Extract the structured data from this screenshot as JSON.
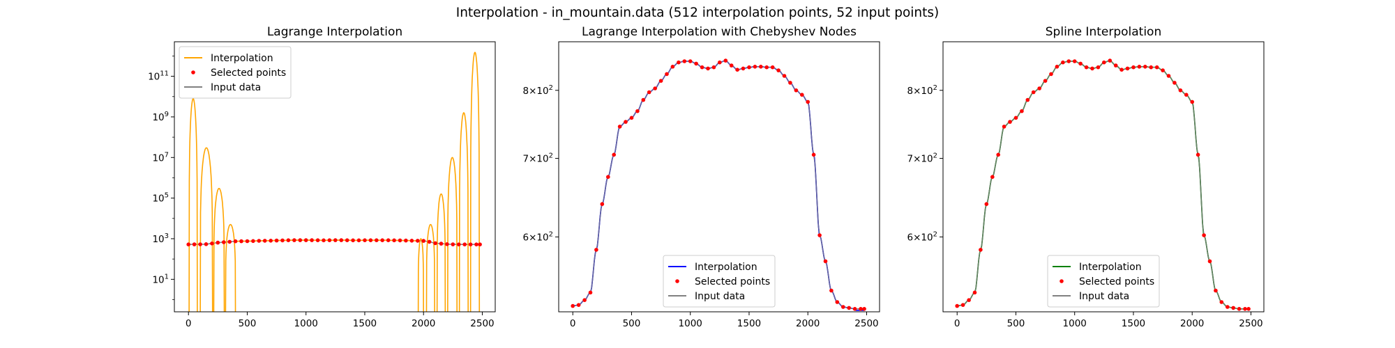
{
  "figure": {
    "suptitle": "Interpolation - in_mountain.data (512 interpolation points, 52 input points)"
  },
  "chart_data": [
    {
      "type": "line",
      "title": "Lagrange Interpolation",
      "xlabel": "",
      "ylabel": "",
      "xlim": [
        -120,
        2610
      ],
      "yscale": "log",
      "ylim_log10": [
        -0.6,
        12.7
      ],
      "x_ticks": [
        0,
        500,
        1000,
        1500,
        2000,
        2500
      ],
      "y_ticks": [
        {
          "exp": 1,
          "label": "10",
          "sup": "1"
        },
        {
          "exp": 3,
          "label": "10",
          "sup": "3"
        },
        {
          "exp": 5,
          "label": "10",
          "sup": "5"
        },
        {
          "exp": 7,
          "label": "10",
          "sup": "7"
        },
        {
          "exp": 9,
          "label": "10",
          "sup": "9"
        },
        {
          "exp": 11,
          "label": "10",
          "sup": "11"
        }
      ],
      "legend_position": "upper left",
      "legend": [
        "Interpolation",
        "Selected points",
        "Input data"
      ],
      "series": [
        {
          "name": "Interpolation",
          "color": "#ffa500",
          "kind": "oscillating-runge",
          "peaks": [
            {
              "x": 40,
              "y": 8000000000.0
            },
            {
              "x": 170,
              "y": 30000000.0
            },
            {
              "x": 265,
              "y": 300000.0
            },
            {
              "x": 365,
              "y": 5000
            },
            {
              "x": 1975,
              "y": 1000
            },
            {
              "x": 2065,
              "y": 5000
            },
            {
              "x": 2155,
              "y": 160000.0
            },
            {
              "x": 2250,
              "y": 10000000.0
            },
            {
              "x": 2350,
              "y": 1600000000.0
            },
            {
              "x": 2440,
              "y": 1500000000000.0
            }
          ]
        },
        {
          "name": "Selected points",
          "color": "#ff0000",
          "kind": "markers"
        },
        {
          "name": "Input data",
          "color": "#808080",
          "kind": "line"
        }
      ]
    },
    {
      "type": "line",
      "title": "Lagrange Interpolation with Chebyshev Nodes",
      "xlabel": "",
      "ylabel": "",
      "xlim": [
        -120,
        2610
      ],
      "yscale": "log",
      "ylim": [
        518,
        880
      ],
      "x_ticks": [
        0,
        500,
        1000,
        1500,
        2000,
        2500
      ],
      "y_ticks": [
        {
          "value": 600,
          "label": "6×10",
          "sup": "2"
        },
        {
          "value": 700,
          "label": "7×10",
          "sup": "2"
        },
        {
          "value": 800,
          "label": "8×10",
          "sup": "2"
        }
      ],
      "legend_position": "lower center",
      "legend": [
        "Interpolation",
        "Selected points",
        "Input data"
      ],
      "series": [
        {
          "name": "Interpolation",
          "color": "#0000ff",
          "kind": "line"
        },
        {
          "name": "Selected points",
          "color": "#ff0000",
          "kind": "markers"
        },
        {
          "name": "Input data",
          "color": "#808080",
          "kind": "line"
        }
      ]
    },
    {
      "type": "line",
      "title": "Spline Interpolation",
      "xlabel": "",
      "ylabel": "",
      "xlim": [
        -120,
        2610
      ],
      "yscale": "log",
      "ylim": [
        518,
        880
      ],
      "x_ticks": [
        0,
        500,
        1000,
        1500,
        2000,
        2500
      ],
      "y_ticks": [
        {
          "value": 600,
          "label": "6×10",
          "sup": "2"
        },
        {
          "value": 700,
          "label": "7×10",
          "sup": "2"
        },
        {
          "value": 800,
          "label": "8×10",
          "sup": "2"
        }
      ],
      "legend_position": "lower center",
      "legend": [
        "Interpolation",
        "Selected points",
        "Input data"
      ],
      "series": [
        {
          "name": "Interpolation",
          "color": "#008000",
          "kind": "line"
        },
        {
          "name": "Selected points",
          "color": "#ff0000",
          "kind": "markers"
        },
        {
          "name": "Input data",
          "color": "#808080",
          "kind": "line"
        }
      ]
    }
  ],
  "profile": {
    "x": [
      0,
      50,
      100,
      150,
      200,
      250,
      300,
      350,
      400,
      450,
      500,
      550,
      600,
      650,
      700,
      750,
      800,
      850,
      900,
      950,
      1000,
      1050,
      1100,
      1150,
      1200,
      1250,
      1300,
      1350,
      1400,
      1450,
      1500,
      1550,
      1600,
      1650,
      1700,
      1750,
      1800,
      1850,
      1900,
      1950,
      2000,
      2050,
      2100,
      2150,
      2200,
      2250,
      2300,
      2350,
      2400,
      2450,
      2480
    ],
    "y": [
      524,
      525,
      530,
      538,
      585,
      640,
      675,
      705,
      745,
      752,
      758,
      768,
      785,
      797,
      803,
      815,
      826,
      838,
      845,
      847,
      847,
      843,
      837,
      835,
      837,
      845,
      848,
      840,
      833,
      835,
      837,
      838,
      838,
      837,
      837,
      832,
      823,
      812,
      800,
      793,
      782,
      705,
      602,
      572,
      540,
      528,
      523,
      522,
      521,
      521,
      521
    ]
  }
}
